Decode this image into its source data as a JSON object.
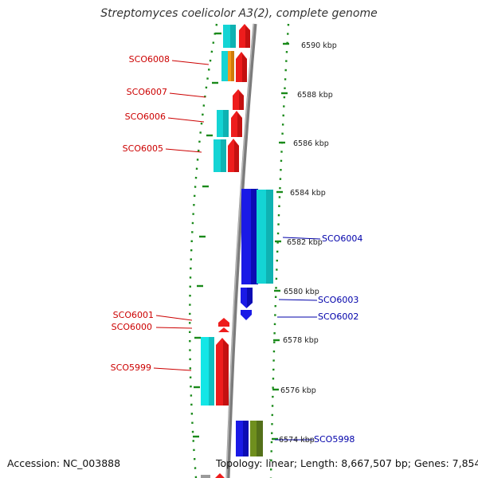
{
  "title": "Streptomyces coelicolor A3(2), complete genome",
  "accession": "Accession: NC_003888",
  "topology": "Topology: linear; Length: 8,667,507 bp; Genes: 7,854",
  "colors": {
    "forward": "#ee1c1c",
    "reverse": "#1a1ae6",
    "cyan": "#14d4d4",
    "orange": "#f29a1a",
    "olive": "#6f8f1e",
    "dots": "#1a8a1a",
    "axis": "#888888",
    "left_label": "#cc0000",
    "right_label": "#0000aa"
  },
  "ticks": [
    "6590 kbp",
    "6588 kbp",
    "6586 kbp",
    "6584 kbp",
    "6582 kbp",
    "6580 kbp",
    "6578 kbp",
    "6576 kbp",
    "6574 kbp"
  ],
  "left_labels": [
    "SCO6008",
    "SCO6007",
    "SCO6006",
    "SCO6005",
    "SCO6001",
    "SCO6000",
    "SCO5999"
  ],
  "right_labels": [
    "SCO6004",
    "SCO6003",
    "SCO6002",
    "SCO5998"
  ]
}
